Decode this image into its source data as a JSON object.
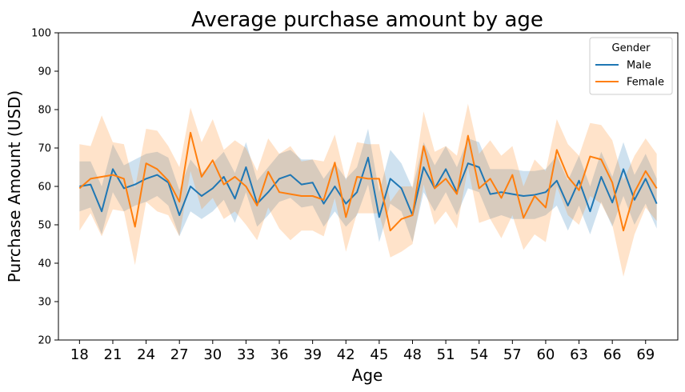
{
  "chart_data": {
    "type": "line",
    "title": "Average purchase amount by age",
    "xlabel": "Age",
    "ylabel": "Purchase Amount (USD)",
    "xlim": [
      16.1,
      71.9
    ],
    "ylim": [
      20,
      100
    ],
    "x_ticks": [
      18,
      21,
      24,
      27,
      30,
      33,
      36,
      39,
      42,
      45,
      48,
      51,
      54,
      57,
      60,
      63,
      66,
      69
    ],
    "y_ticks": [
      20,
      30,
      40,
      50,
      60,
      70,
      80,
      90,
      100
    ],
    "grid": false,
    "legend": {
      "title": "Gender",
      "placement": "top-right"
    },
    "x": [
      18,
      19,
      20,
      21,
      22,
      23,
      24,
      25,
      26,
      27,
      28,
      29,
      30,
      31,
      32,
      33,
      34,
      35,
      36,
      37,
      38,
      39,
      40,
      41,
      42,
      43,
      44,
      45,
      46,
      47,
      48,
      49,
      50,
      51,
      52,
      53,
      54,
      55,
      56,
      57,
      58,
      59,
      60,
      61,
      62,
      63,
      64,
      65,
      66,
      67,
      68,
      69,
      70
    ],
    "series": [
      {
        "name": "Male",
        "color": "#1f77b4",
        "values": [
          60,
          60.5,
          53.5,
          64.5,
          59.5,
          60.5,
          62,
          63,
          61,
          52.5,
          60,
          57.5,
          59.5,
          62.5,
          56.8,
          65,
          55.5,
          58.5,
          62,
          63,
          60.5,
          61,
          55.5,
          60,
          55.5,
          58.5,
          67.5,
          52,
          62,
          59.5,
          52.5,
          65,
          59.5,
          64.5,
          58.5,
          66,
          65,
          58,
          58.5,
          58,
          57.5,
          57.8,
          58.5,
          61.5,
          55,
          61.5,
          53.5,
          62.5,
          55.8,
          64.5,
          56.5,
          62,
          55.5
        ],
        "lower": [
          53.5,
          54.5,
          47.5,
          58.5,
          53.5,
          55,
          56,
          57.5,
          55,
          47,
          53.5,
          51.5,
          53.5,
          56.5,
          50.5,
          58.5,
          49.5,
          52.5,
          56,
          57,
          54.5,
          55,
          49.5,
          53.5,
          49.5,
          52.5,
          60.5,
          45.5,
          55.5,
          53.5,
          45.5,
          58.5,
          53.5,
          58.5,
          52.5,
          59.5,
          58.5,
          51.5,
          52.5,
          51.5,
          51.5,
          51.5,
          52.5,
          55,
          48.5,
          55,
          47.5,
          56,
          49.5,
          57.5,
          50,
          55.5,
          49
        ],
        "upper": [
          66.5,
          66.5,
          60,
          71,
          65.5,
          67,
          68.5,
          69,
          67.5,
          59,
          67,
          63.5,
          66,
          69,
          63.5,
          71.5,
          61.5,
          65,
          68.5,
          69.5,
          67,
          67,
          62,
          66,
          62,
          65,
          75,
          58.5,
          69.5,
          66,
          59.5,
          71.5,
          65.5,
          70.5,
          65,
          72.5,
          71.5,
          64.5,
          64.5,
          64.5,
          64,
          64,
          64.5,
          68,
          61.5,
          68,
          60,
          69,
          62.5,
          71.5,
          63,
          68.5,
          62
        ]
      },
      {
        "name": "Female",
        "color": "#ff7f0e",
        "values": [
          59.5,
          62,
          62.5,
          63,
          62,
          49.5,
          66,
          64.5,
          61.5,
          56,
          74,
          62.5,
          66.8,
          60.5,
          62.5,
          60,
          55,
          63.8,
          58.5,
          58,
          57.5,
          57.5,
          56.5,
          66.2,
          52,
          62.5,
          62,
          62,
          48.5,
          51.5,
          52.5,
          70.5,
          59.5,
          62,
          58,
          73.2,
          59.5,
          62,
          57,
          63,
          51.8,
          57.5,
          54.5,
          69.5,
          62.5,
          59,
          67.8,
          67,
          61,
          48.5,
          58.5,
          64,
          59.5
        ],
        "lower": [
          48.5,
          53,
          47,
          54,
          53.5,
          39.5,
          56,
          53.5,
          52.5,
          47,
          64,
          54,
          57,
          51.5,
          53.5,
          50,
          46,
          54.5,
          49,
          46,
          48.5,
          48.5,
          47,
          57,
          43,
          53,
          53,
          53,
          41.5,
          43,
          45,
          60.5,
          50,
          53.5,
          49,
          65,
          50.5,
          51.5,
          46.5,
          52.5,
          43.5,
          47.5,
          45.5,
          60,
          52.5,
          50,
          57.5,
          55.5,
          50,
          36.5,
          47.5,
          54.5,
          51
        ],
        "upper": [
          71,
          70.5,
          78.5,
          71.5,
          71,
          59.5,
          75,
          74.5,
          70.5,
          65,
          80.5,
          71.5,
          77.5,
          69.5,
          72,
          70,
          64,
          72.5,
          68.5,
          70.5,
          66.5,
          67,
          66.5,
          73.5,
          61.5,
          71.5,
          71,
          71,
          56,
          60,
          60,
          79.5,
          69,
          70.5,
          68,
          81.5,
          68.5,
          72,
          68,
          70.5,
          60,
          67,
          64,
          77.5,
          71,
          68,
          76.5,
          76,
          72,
          61.5,
          68,
          72.5,
          68.5
        ]
      }
    ]
  }
}
